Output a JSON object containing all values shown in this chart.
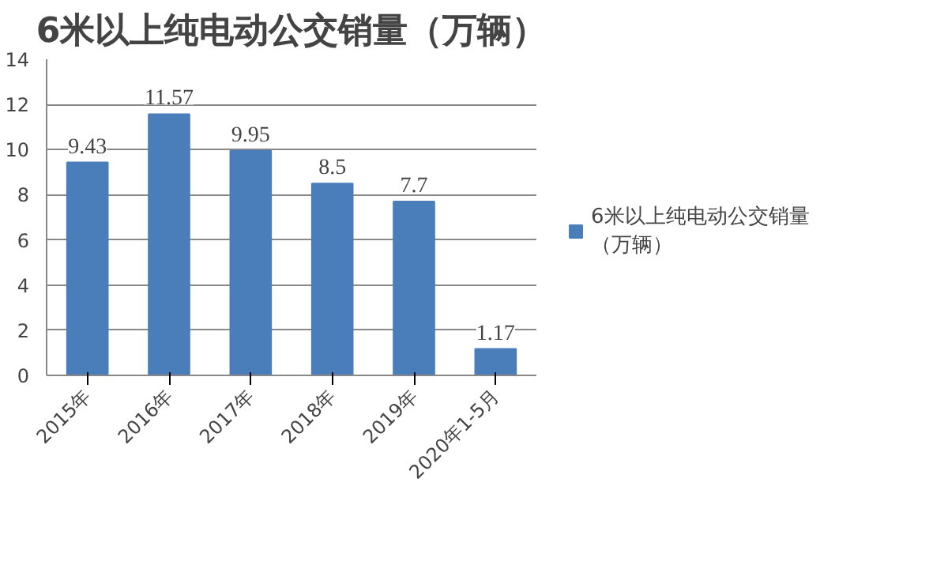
{
  "chart_data": {
    "type": "bar",
    "title": "6米以上纯电动公交销量（万辆）",
    "categories": [
      "2015年",
      "2016年",
      "2017年",
      "2018年",
      "2019年",
      "2020年1-5月"
    ],
    "series": [
      {
        "name": "6米以上纯电动公交销量（万辆）",
        "color": "#4a7ebb",
        "values": [
          9.43,
          11.57,
          9.95,
          8.5,
          7.7,
          1.17
        ]
      }
    ],
    "ylim": [
      0,
      14
    ],
    "yticks": [
      0,
      2,
      4,
      6,
      8,
      10,
      12,
      14
    ],
    "grid": "y",
    "legend": "right",
    "data_labels": true
  }
}
